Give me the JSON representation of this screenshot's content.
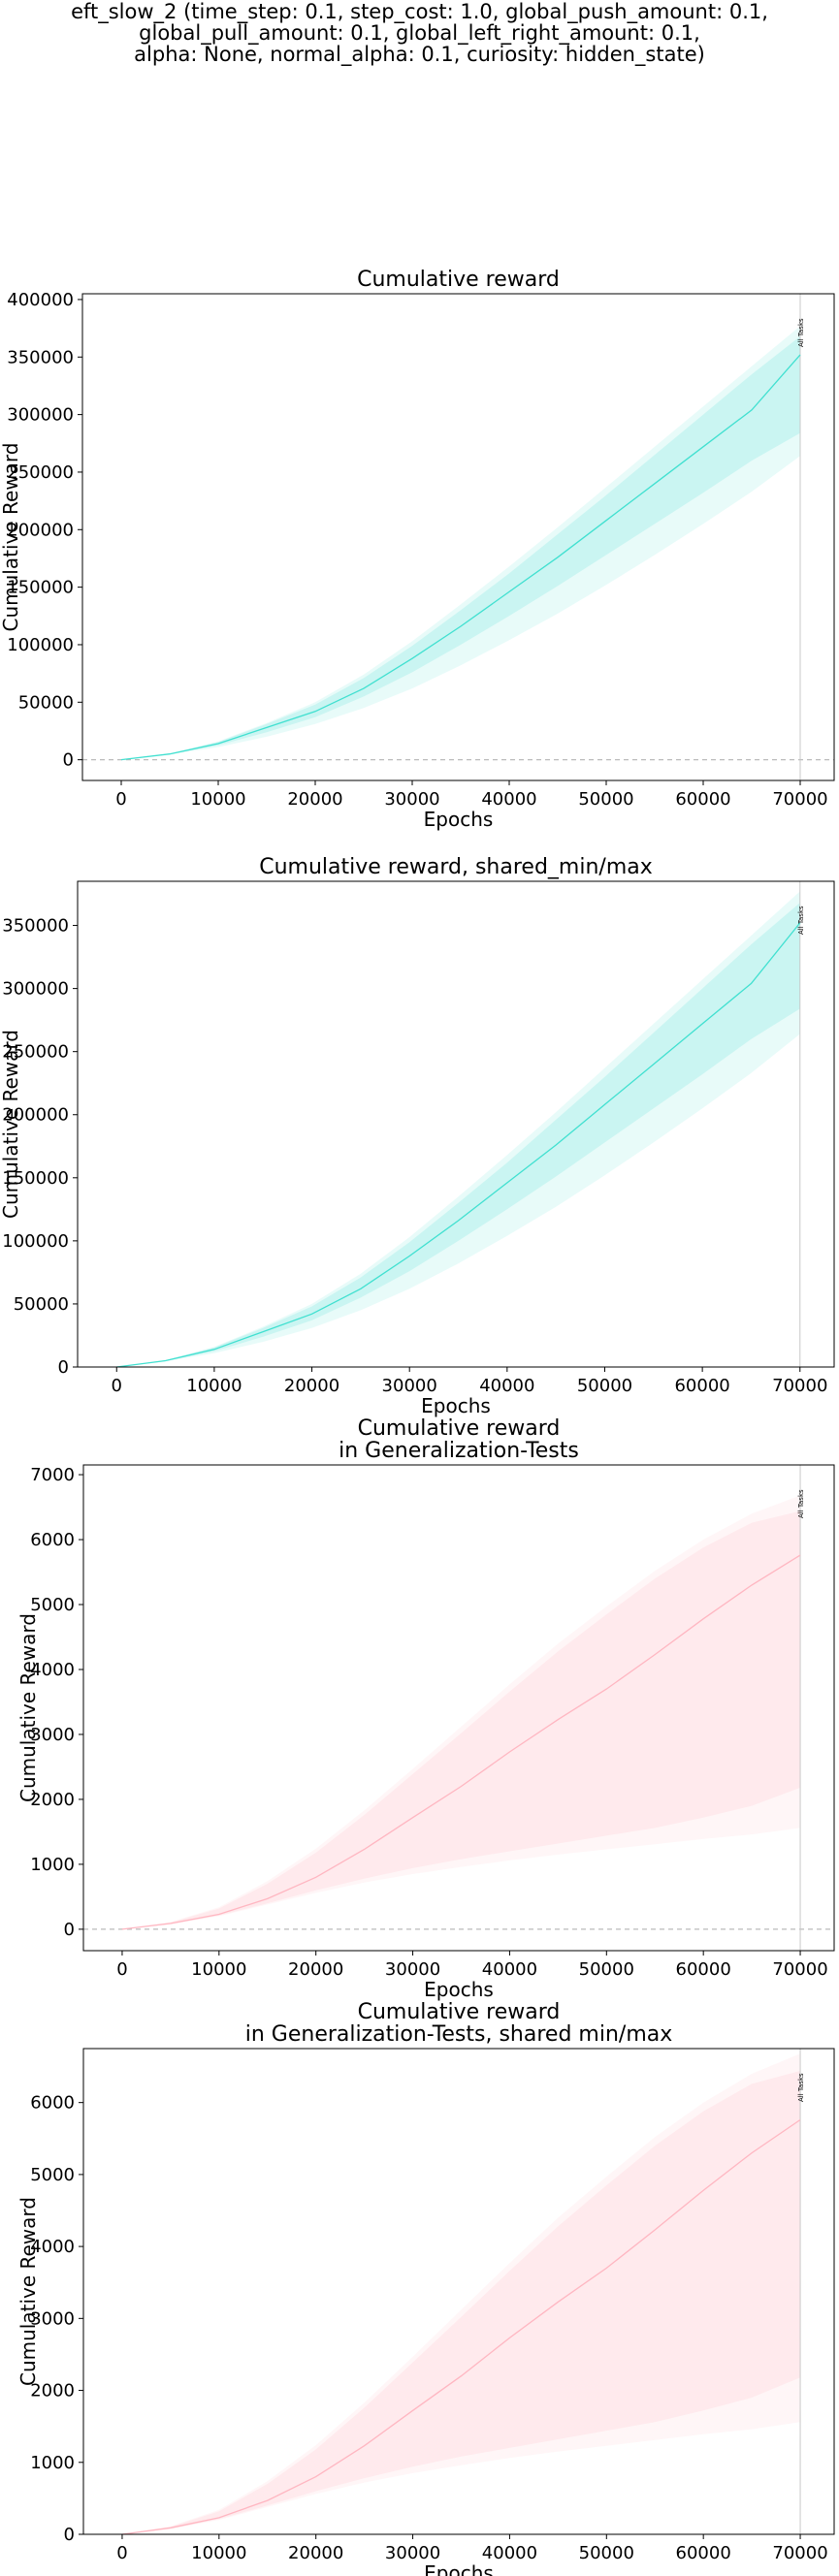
{
  "suptitle": {
    "lines": [
      "eft_slow_2 (time_step: 0.1, step_cost: 1.0, global_push_amount: 0.1,",
      "global_pull_amount: 0.1, global_left_right_amount: 0.1,",
      "alpha: None, normal_alpha: 0.1, curiosity: hidden_state)"
    ]
  },
  "chart_data": [
    {
      "type": "line",
      "title": [
        "Cumulative reward"
      ],
      "xlabel": "Epochs",
      "ylabel": "Cumulative Reward",
      "xlim": [
        -4000,
        73500
      ],
      "ylim": [
        -18000,
        405000
      ],
      "xticks": [
        0,
        10000,
        20000,
        30000,
        40000,
        50000,
        60000,
        70000
      ],
      "yticks": [
        0,
        50000,
        100000,
        150000,
        200000,
        250000,
        300000,
        350000,
        400000
      ],
      "zero_line": true,
      "vline": {
        "x": 70000,
        "label": "All Tasks"
      },
      "color": "#40e0d0",
      "x": [
        0,
        5000,
        10000,
        15000,
        20000,
        25000,
        30000,
        35000,
        40000,
        45000,
        50000,
        55000,
        60000,
        65000,
        70000
      ],
      "mean": [
        0,
        5000,
        14000,
        28000,
        42000,
        62000,
        88000,
        116000,
        146000,
        176000,
        208000,
        240000,
        272000,
        304000,
        352000
      ],
      "band_outer": {
        "lower": [
          0,
          4500,
          11000,
          20000,
          31000,
          45000,
          62000,
          82000,
          104000,
          127000,
          152000,
          178000,
          205000,
          233000,
          264000
        ],
        "upper": [
          0,
          5600,
          16000,
          32000,
          50000,
          74000,
          103000,
          135000,
          168000,
          202000,
          237000,
          272000,
          307000,
          342000,
          377000
        ]
      },
      "band_inner": {
        "lower": [
          0,
          4800,
          12500,
          24000,
          37000,
          55000,
          76000,
          100000,
          125000,
          151000,
          178000,
          205000,
          232000,
          260000,
          284000
        ],
        "upper": [
          0,
          5400,
          15500,
          31000,
          48000,
          71000,
          99000,
          130000,
          162000,
          196000,
          230000,
          265000,
          300000,
          335000,
          368000
        ]
      }
    },
    {
      "type": "line",
      "title": [
        "Cumulative reward, shared_min/max"
      ],
      "xlabel": "Epochs",
      "ylabel": "Cumulative Reward",
      "xlim": [
        -4000,
        73500
      ],
      "ylim": [
        0,
        385000
      ],
      "xticks": [
        0,
        10000,
        20000,
        30000,
        40000,
        50000,
        60000,
        70000
      ],
      "yticks": [
        0,
        50000,
        100000,
        150000,
        200000,
        250000,
        300000,
        350000
      ],
      "zero_line": false,
      "vline": {
        "x": 70000,
        "label": "All Tasks"
      },
      "color": "#40e0d0",
      "x": [
        0,
        5000,
        10000,
        15000,
        20000,
        25000,
        30000,
        35000,
        40000,
        45000,
        50000,
        55000,
        60000,
        65000,
        70000
      ],
      "mean": [
        0,
        5000,
        14000,
        28000,
        42000,
        62000,
        88000,
        116000,
        146000,
        176000,
        208000,
        240000,
        272000,
        304000,
        352000
      ],
      "band_outer": {
        "lower": [
          0,
          4500,
          11000,
          20000,
          31000,
          45000,
          62000,
          82000,
          104000,
          127000,
          152000,
          178000,
          205000,
          233000,
          264000
        ],
        "upper": [
          0,
          5600,
          16000,
          32000,
          50000,
          74000,
          103000,
          135000,
          168000,
          202000,
          237000,
          272000,
          307000,
          342000,
          377000
        ]
      },
      "band_inner": {
        "lower": [
          0,
          4800,
          12500,
          24000,
          37000,
          55000,
          76000,
          100000,
          125000,
          151000,
          178000,
          205000,
          232000,
          260000,
          284000
        ],
        "upper": [
          0,
          5400,
          15500,
          31000,
          48000,
          71000,
          99000,
          130000,
          162000,
          196000,
          230000,
          265000,
          300000,
          335000,
          368000
        ]
      }
    },
    {
      "type": "line",
      "title": [
        "Cumulative reward",
        "in Generalization-Tests"
      ],
      "xlabel": "Epochs",
      "ylabel": "Cumulative Reward",
      "xlim": [
        -4000,
        73500
      ],
      "ylim": [
        -330,
        7150
      ],
      "xticks": [
        0,
        10000,
        20000,
        30000,
        40000,
        50000,
        60000,
        70000
      ],
      "yticks": [
        0,
        1000,
        2000,
        3000,
        4000,
        5000,
        6000,
        7000
      ],
      "zero_line": true,
      "vline": {
        "x": 70000,
        "label": "All Tasks"
      },
      "color": "#ffb6c1",
      "x": [
        0,
        5000,
        10000,
        15000,
        20000,
        25000,
        30000,
        35000,
        40000,
        45000,
        50000,
        55000,
        60000,
        65000,
        70000
      ],
      "mean": [
        0,
        90,
        230,
        470,
        800,
        1230,
        1720,
        2200,
        2730,
        3230,
        3700,
        4230,
        4780,
        5300,
        5760
      ],
      "band_outer": {
        "lower": [
          0,
          70,
          200,
          380,
          560,
          720,
          850,
          960,
          1060,
          1150,
          1230,
          1310,
          1390,
          1460,
          1560
        ],
        "upper": [
          0,
          110,
          340,
          740,
          1240,
          1830,
          2470,
          3120,
          3770,
          4400,
          4970,
          5520,
          6000,
          6400,
          6680
        ]
      },
      "band_inner": {
        "lower": [
          0,
          80,
          210,
          400,
          600,
          780,
          940,
          1080,
          1200,
          1320,
          1440,
          1560,
          1720,
          1900,
          2180
        ],
        "upper": [
          0,
          105,
          320,
          700,
          1180,
          1760,
          2390,
          3020,
          3660,
          4280,
          4850,
          5400,
          5880,
          6260,
          6440
        ]
      }
    },
    {
      "type": "line",
      "title": [
        "Cumulative reward",
        "in Generalization-Tests, shared min/max"
      ],
      "xlabel": "Epochs",
      "ylabel": "Cumulative Reward",
      "xlim": [
        -4000,
        73500
      ],
      "ylim": [
        0,
        6750
      ],
      "xticks": [
        0,
        10000,
        20000,
        30000,
        40000,
        50000,
        60000,
        70000
      ],
      "yticks": [
        0,
        1000,
        2000,
        3000,
        4000,
        5000,
        6000
      ],
      "zero_line": false,
      "vline": {
        "x": 70000,
        "label": "All Tasks"
      },
      "color": "#ffb6c1",
      "x": [
        0,
        5000,
        10000,
        15000,
        20000,
        25000,
        30000,
        35000,
        40000,
        45000,
        50000,
        55000,
        60000,
        65000,
        70000
      ],
      "mean": [
        0,
        90,
        230,
        470,
        800,
        1230,
        1720,
        2200,
        2730,
        3230,
        3700,
        4230,
        4780,
        5300,
        5760
      ],
      "band_outer": {
        "lower": [
          0,
          70,
          200,
          380,
          560,
          720,
          850,
          960,
          1060,
          1150,
          1230,
          1310,
          1390,
          1460,
          1560
        ],
        "upper": [
          0,
          110,
          340,
          740,
          1240,
          1830,
          2470,
          3120,
          3770,
          4400,
          4970,
          5520,
          6000,
          6400,
          6680
        ]
      },
      "band_inner": {
        "lower": [
          0,
          80,
          210,
          400,
          600,
          780,
          940,
          1080,
          1200,
          1320,
          1440,
          1560,
          1720,
          1900,
          2180
        ],
        "upper": [
          0,
          105,
          320,
          700,
          1180,
          1760,
          2390,
          3020,
          3660,
          4280,
          4850,
          5400,
          5880,
          6260,
          6440
        ]
      }
    }
  ]
}
